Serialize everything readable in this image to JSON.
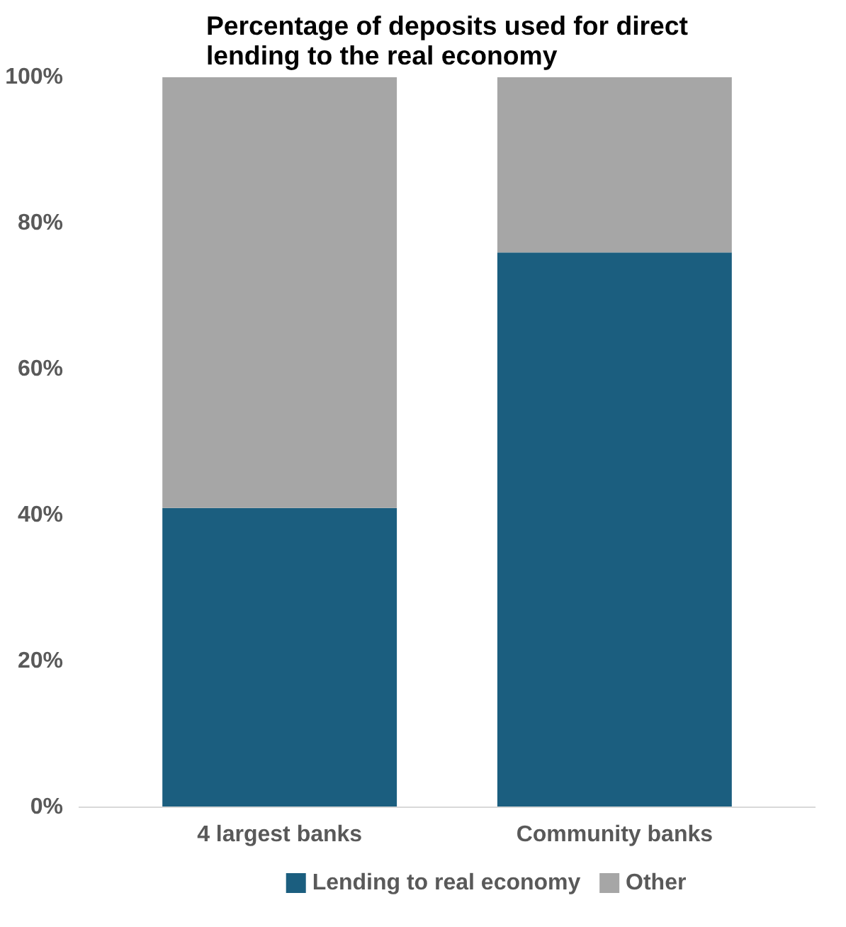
{
  "chart_data": {
    "type": "bar",
    "title": "Percentage of deposits used for direct lending to the real economy",
    "categories": [
      "4 largest banks",
      "Community banks"
    ],
    "stacked": true,
    "series": [
      {
        "name": "Lending to real economy",
        "color": "#1b5e7f",
        "values": [
          41,
          76
        ]
      },
      {
        "name": "Other",
        "color": "#a6a6a6",
        "values": [
          59,
          24
        ]
      }
    ],
    "ylim": [
      0,
      100
    ],
    "yticks": [
      {
        "value": 0,
        "label": "0%"
      },
      {
        "value": 20,
        "label": "20%"
      },
      {
        "value": 40,
        "label": "40%"
      },
      {
        "value": 60,
        "label": "60%"
      },
      {
        "value": 80,
        "label": "80%"
      },
      {
        "value": 100,
        "label": "100%"
      }
    ],
    "grid": false,
    "legend": "bottom"
  }
}
